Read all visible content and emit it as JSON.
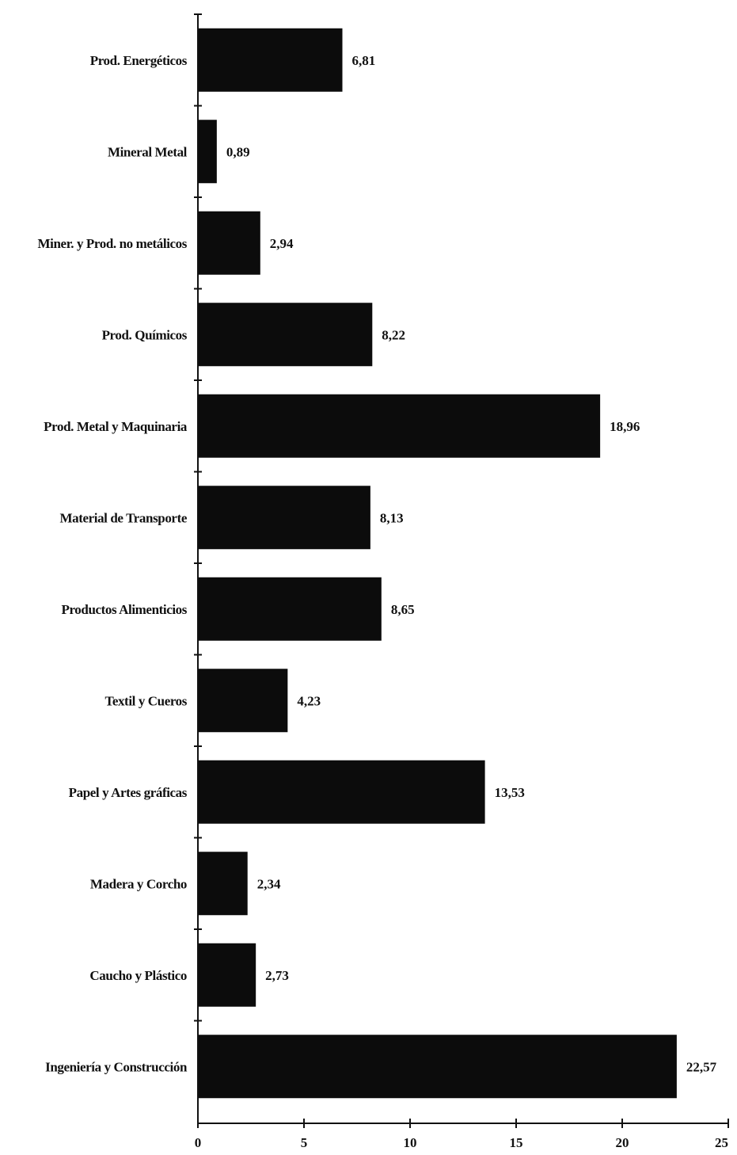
{
  "chart_data": {
    "type": "bar",
    "orientation": "horizontal",
    "categories": [
      "Prod. Energéticos",
      "Mineral Metal",
      "Miner. y Prod. no metálicos",
      "Prod. Químicos",
      "Prod. Metal y Maquinaria",
      "Material de Transporte",
      "Productos Alimenticios",
      "Textil y Cueros",
      "Papel y Artes gráficas",
      "Madera y Corcho",
      "Caucho y Plástico",
      "Ingeniería y Construcción"
    ],
    "values": [
      6.81,
      0.89,
      2.94,
      8.22,
      18.96,
      8.13,
      8.65,
      4.23,
      13.53,
      2.34,
      2.73,
      22.57
    ],
    "value_labels": [
      "6,81",
      "0,89",
      "2,94",
      "8,22",
      "18,96",
      "8,13",
      "8,65",
      "4,23",
      "13,53",
      "2,34",
      "2,73",
      "22,57"
    ],
    "x_ticks": [
      "0",
      "5",
      "10",
      "15",
      "20",
      "25"
    ],
    "xlim": [
      0,
      25
    ],
    "title": "",
    "xlabel": "",
    "ylabel": "",
    "grid": false,
    "legend": "none",
    "bar_color": "#0c0c0c"
  }
}
